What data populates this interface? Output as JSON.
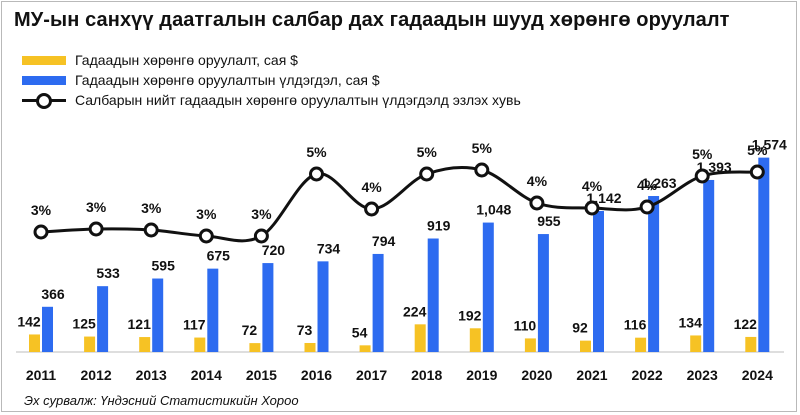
{
  "title": "МУ-ын санхүү даатгалын салбар дах гадаадын шууд хөрөнгө оруулалт",
  "source": "Эх сурвалж: Үндэсний Статистикийн Хороо",
  "legend": {
    "flow": "Гадаадын хөрөнгө оруулалт, сая $",
    "stock": "Гадаадын хөрөнгө оруулалтын үлдэгдэл, сая $",
    "share": "Салбарын нийт гадаадын хөрөнгө оруулалтын үлдэгдэлд эзлэх хувь"
  },
  "colors": {
    "flow": "#f6c224",
    "stock": "#2d6bf0",
    "share": "#111111"
  },
  "chart_data": {
    "type": "bar",
    "categories": [
      "2011",
      "2012",
      "2013",
      "2014",
      "2015",
      "2016",
      "2017",
      "2018",
      "2019",
      "2020",
      "2021",
      "2022",
      "2023",
      "2024"
    ],
    "series": [
      {
        "name": "Гадаадын хөрөнгө оруулалт, сая $",
        "type": "bar",
        "values": [
          142,
          125,
          121,
          117,
          72,
          73,
          54,
          224,
          192,
          110,
          92,
          116,
          134,
          122
        ]
      },
      {
        "name": "Гадаадын хөрөнгө оруулалтын үлдэгдэл, сая $",
        "type": "bar",
        "values": [
          366,
          533,
          595,
          675,
          720,
          734,
          794,
          919,
          1048,
          955,
          1142,
          1263,
          1393,
          1574
        ]
      },
      {
        "name": "Салбарын нийт гадаадын хөрөнгө оруулалтын үлдэгдэлд эзлэх хувь",
        "type": "line",
        "values": [
          3,
          3,
          3,
          3,
          3,
          5,
          4,
          5,
          5,
          4,
          4,
          4,
          5,
          5
        ],
        "labels": [
          "3%",
          "3%",
          "3%",
          "3%",
          "3%",
          "5%",
          "4%",
          "5%",
          "5%",
          "4%",
          "4%",
          "4%",
          "5%",
          "5%"
        ]
      }
    ],
    "value_labels_flow": [
      "142",
      "125",
      "121",
      "117",
      "72",
      "73",
      "54",
      "224",
      "192",
      "110",
      "92",
      "116",
      "134",
      "122"
    ],
    "value_labels_stock": [
      "366",
      "533",
      "595",
      "675",
      "720",
      "734",
      "794",
      "919",
      "1,048",
      "955",
      "1,142",
      "1,263",
      "1,393",
      "1,574"
    ],
    "grid": false
  }
}
